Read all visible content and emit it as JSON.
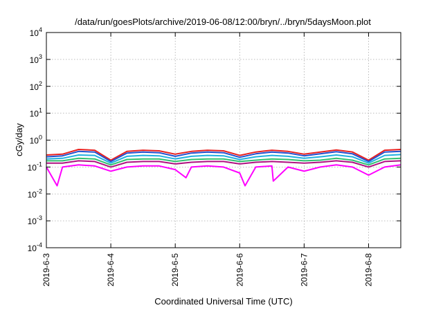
{
  "chart_data": {
    "type": "line",
    "title": "/data/run/goesPlots/archive/2019-06-08/12:00/bryn/../bryn/5daysMoon.plot",
    "xlabel": "Coordinated Universal Time (UTC)",
    "ylabel": "cGy/day",
    "yscale": "log",
    "ylim": [
      0.0001,
      10000
    ],
    "y_ticks": [
      {
        "base": "10",
        "exp": "-4",
        "value": 0.0001
      },
      {
        "base": "10",
        "exp": "-3",
        "value": 0.001
      },
      {
        "base": "10",
        "exp": "-2",
        "value": 0.01
      },
      {
        "base": "10",
        "exp": "-1",
        "value": 0.1
      },
      {
        "base": "10",
        "exp": "0",
        "value": 1
      },
      {
        "base": "10",
        "exp": "1",
        "value": 10
      },
      {
        "base": "10",
        "exp": "2",
        "value": 100
      },
      {
        "base": "10",
        "exp": "3",
        "value": 1000
      },
      {
        "base": "10",
        "exp": "4",
        "value": 10000
      }
    ],
    "x_ticks": [
      "2019-6-3",
      "2019-6-4",
      "2019-6-5",
      "2019-6-6",
      "2019-6-7",
      "2019-6-8"
    ],
    "xlim": [
      "2019-06-03T00:00",
      "2019-06-08T12:00"
    ],
    "grid": true,
    "legend": "none",
    "series": [
      {
        "color": "#e8201f",
        "x": [
          "2019-06-03T00:00",
          "2019-06-03T06:00",
          "2019-06-03T12:00",
          "2019-06-03T18:00",
          "2019-06-04T00:00",
          "2019-06-04T06:00",
          "2019-06-04T12:00",
          "2019-06-04T18:00",
          "2019-06-05T00:00",
          "2019-06-05T06:00",
          "2019-06-05T12:00",
          "2019-06-05T18:00",
          "2019-06-06T00:00",
          "2019-06-06T06:00",
          "2019-06-06T12:00",
          "2019-06-06T18:00",
          "2019-06-07T00:00",
          "2019-06-07T06:00",
          "2019-06-07T12:00",
          "2019-06-07T18:00",
          "2019-06-08T00:00",
          "2019-06-08T06:00",
          "2019-06-08T12:00"
        ],
        "values": [
          0.28,
          0.3,
          0.45,
          0.42,
          0.18,
          0.38,
          0.42,
          0.4,
          0.3,
          0.38,
          0.42,
          0.4,
          0.27,
          0.36,
          0.42,
          0.38,
          0.3,
          0.36,
          0.43,
          0.36,
          0.18,
          0.42,
          0.45
        ]
      },
      {
        "color": "#2050d0",
        "x": [
          "2019-06-03T00:00",
          "2019-06-03T06:00",
          "2019-06-03T12:00",
          "2019-06-03T18:00",
          "2019-06-04T00:00",
          "2019-06-04T06:00",
          "2019-06-04T12:00",
          "2019-06-04T18:00",
          "2019-06-05T00:00",
          "2019-06-05T06:00",
          "2019-06-05T12:00",
          "2019-06-05T18:00",
          "2019-06-06T00:00",
          "2019-06-06T06:00",
          "2019-06-06T12:00",
          "2019-06-06T18:00",
          "2019-06-07T00:00",
          "2019-06-07T06:00",
          "2019-06-07T12:00",
          "2019-06-07T18:00",
          "2019-06-08T00:00",
          "2019-06-08T06:00",
          "2019-06-08T12:00"
        ],
        "values": [
          0.24,
          0.26,
          0.38,
          0.36,
          0.16,
          0.33,
          0.36,
          0.34,
          0.25,
          0.33,
          0.36,
          0.34,
          0.23,
          0.31,
          0.36,
          0.33,
          0.26,
          0.31,
          0.37,
          0.31,
          0.16,
          0.36,
          0.38
        ]
      },
      {
        "color": "#20b0e0",
        "x": [
          "2019-06-03T00:00",
          "2019-06-03T06:00",
          "2019-06-03T12:00",
          "2019-06-03T18:00",
          "2019-06-04T00:00",
          "2019-06-04T06:00",
          "2019-06-04T12:00",
          "2019-06-04T18:00",
          "2019-06-05T00:00",
          "2019-06-05T06:00",
          "2019-06-05T12:00",
          "2019-06-05T18:00",
          "2019-06-06T00:00",
          "2019-06-06T06:00",
          "2019-06-06T12:00",
          "2019-06-06T18:00",
          "2019-06-07T00:00",
          "2019-06-07T06:00",
          "2019-06-07T12:00",
          "2019-06-07T18:00",
          "2019-06-08T00:00",
          "2019-06-08T06:00",
          "2019-06-08T12:00"
        ],
        "values": [
          0.2,
          0.21,
          0.28,
          0.27,
          0.14,
          0.25,
          0.27,
          0.26,
          0.2,
          0.25,
          0.27,
          0.26,
          0.19,
          0.24,
          0.27,
          0.25,
          0.21,
          0.24,
          0.28,
          0.24,
          0.14,
          0.27,
          0.29
        ]
      },
      {
        "color": "#30c070",
        "x": [
          "2019-06-03T00:00",
          "2019-06-03T06:00",
          "2019-06-03T12:00",
          "2019-06-03T18:00",
          "2019-06-04T00:00",
          "2019-06-04T06:00",
          "2019-06-04T12:00",
          "2019-06-04T18:00",
          "2019-06-05T00:00",
          "2019-06-05T06:00",
          "2019-06-05T12:00",
          "2019-06-05T18:00",
          "2019-06-06T00:00",
          "2019-06-06T06:00",
          "2019-06-06T12:00",
          "2019-06-06T18:00",
          "2019-06-07T00:00",
          "2019-06-07T06:00",
          "2019-06-07T12:00",
          "2019-06-07T18:00",
          "2019-06-08T00:00",
          "2019-06-08T06:00",
          "2019-06-08T12:00"
        ],
        "values": [
          0.17,
          0.17,
          0.21,
          0.2,
          0.12,
          0.19,
          0.2,
          0.2,
          0.16,
          0.19,
          0.2,
          0.2,
          0.16,
          0.18,
          0.2,
          0.19,
          0.17,
          0.18,
          0.21,
          0.18,
          0.12,
          0.2,
          0.21
        ]
      },
      {
        "color": "#b01080",
        "x": [
          "2019-06-03T00:00",
          "2019-06-03T06:00",
          "2019-06-03T12:00",
          "2019-06-03T18:00",
          "2019-06-04T00:00",
          "2019-06-04T06:00",
          "2019-06-04T12:00",
          "2019-06-04T18:00",
          "2019-06-05T00:00",
          "2019-06-05T06:00",
          "2019-06-05T12:00",
          "2019-06-05T18:00",
          "2019-06-06T00:00",
          "2019-06-06T06:00",
          "2019-06-06T12:00",
          "2019-06-06T18:00",
          "2019-06-07T00:00",
          "2019-06-07T06:00",
          "2019-06-07T12:00",
          "2019-06-07T18:00",
          "2019-06-08T00:00",
          "2019-06-08T06:00",
          "2019-06-08T12:00"
        ],
        "values": [
          0.14,
          0.14,
          0.17,
          0.16,
          0.1,
          0.15,
          0.16,
          0.16,
          0.13,
          0.15,
          0.16,
          0.16,
          0.13,
          0.15,
          0.16,
          0.15,
          0.14,
          0.15,
          0.17,
          0.15,
          0.1,
          0.16,
          0.17
        ]
      },
      {
        "color": "#ff00ff",
        "x": [
          "2019-06-03T00:00",
          "2019-06-03T04:00",
          "2019-06-03T06:00",
          "2019-06-03T12:00",
          "2019-06-03T18:00",
          "2019-06-04T00:00",
          "2019-06-04T06:00",
          "2019-06-04T12:00",
          "2019-06-04T18:00",
          "2019-06-05T00:00",
          "2019-06-05T04:00",
          "2019-06-05T06:00",
          "2019-06-05T12:00",
          "2019-06-05T18:00",
          "2019-06-06T00:00",
          "2019-06-06T02:00",
          "2019-06-06T06:00",
          "2019-06-06T12:00",
          "2019-06-06T12:30",
          "2019-06-06T18:00",
          "2019-06-07T00:00",
          "2019-06-07T06:00",
          "2019-06-07T12:00",
          "2019-06-07T18:00",
          "2019-06-08T00:00",
          "2019-06-08T06:00",
          "2019-06-08T12:00"
        ],
        "values": [
          0.1,
          0.02,
          0.1,
          0.12,
          0.11,
          0.07,
          0.1,
          0.11,
          0.11,
          0.08,
          0.04,
          0.1,
          0.11,
          0.1,
          0.06,
          0.02,
          0.1,
          0.11,
          0.03,
          0.1,
          0.07,
          0.1,
          0.12,
          0.1,
          0.05,
          0.1,
          0.12
        ]
      }
    ]
  }
}
